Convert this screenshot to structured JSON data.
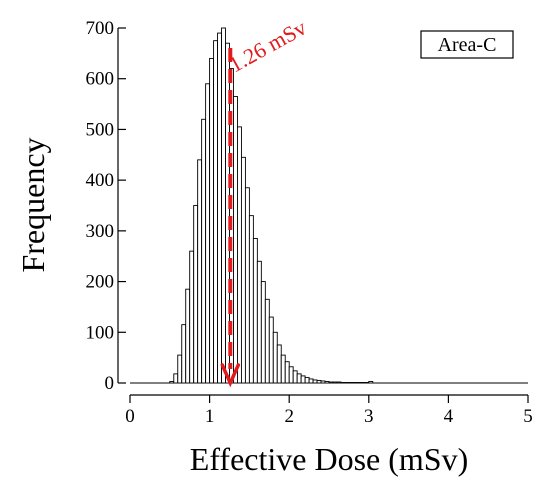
{
  "chart_data": {
    "type": "bar",
    "xlabel": "Effective Dose (mSv)",
    "ylabel": "Frequency",
    "xlim": [
      0,
      5
    ],
    "ylim": [
      0,
      700
    ],
    "x_ticks": [
      0,
      1,
      2,
      3,
      4,
      5
    ],
    "y_ticks": [
      0,
      100,
      200,
      300,
      400,
      500,
      600,
      700
    ],
    "grid": false,
    "legend": {
      "text": "Area-C",
      "position": "top-right"
    },
    "annotation": {
      "text": "1.26 mSv",
      "x": 1.26,
      "color": "#e31a1c"
    },
    "bin_width": 0.05,
    "bin_start": 0.5,
    "values": [
      3,
      18,
      55,
      115,
      185,
      260,
      350,
      440,
      520,
      590,
      640,
      675,
      690,
      700,
      670,
      620,
      565,
      505,
      445,
      385,
      330,
      285,
      240,
      200,
      165,
      130,
      100,
      75,
      55,
      42,
      32,
      24,
      18,
      14,
      11,
      8,
      6,
      5,
      4,
      3,
      2,
      2,
      2,
      1,
      1,
      1,
      1,
      1,
      1,
      1,
      3
    ],
    "colors": {
      "bar_fill": "#ffffff",
      "bar_stroke": "#000000",
      "annotation": "#e31a1c"
    }
  }
}
